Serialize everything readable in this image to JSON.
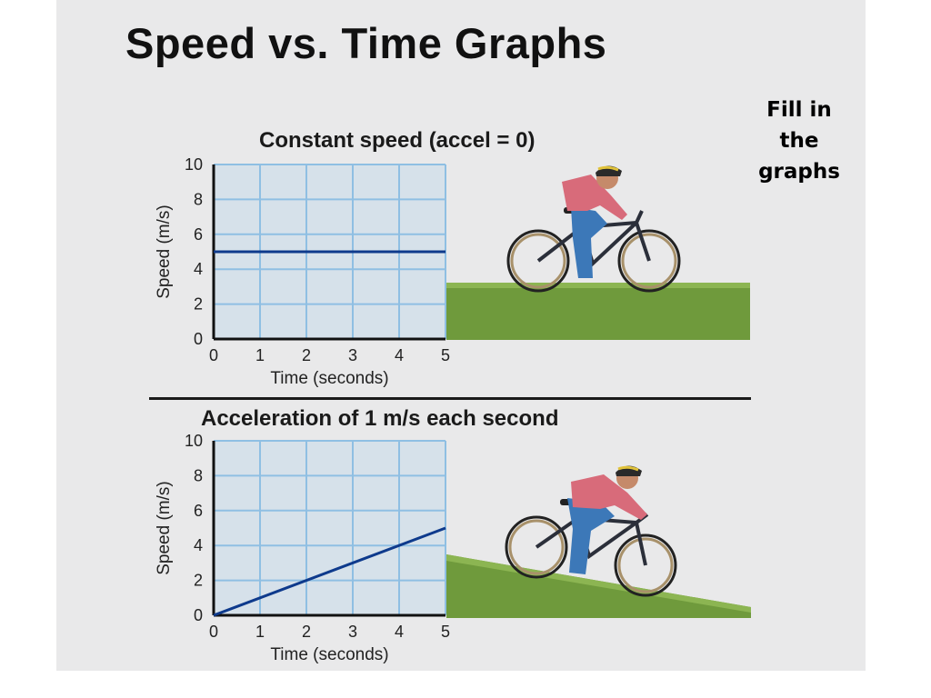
{
  "slide": {
    "title": "Speed vs. Time Graphs",
    "note_lines": [
      "Fill in",
      "the",
      "graphs"
    ]
  },
  "colors": {
    "plot_bg": "#d6e1ea",
    "grid": "#8fbfe3",
    "line": "#0e3a8c",
    "ground": "#6f9a3c",
    "ground_light": "#8cb552"
  },
  "chart_data": [
    {
      "type": "line",
      "title": "Constant speed (accel = 0)",
      "xlabel": "Time (seconds)",
      "ylabel": "Speed (m/s)",
      "xlim": [
        0,
        5
      ],
      "ylim": [
        0,
        10
      ],
      "xticks": [
        0,
        1,
        2,
        3,
        4,
        5
      ],
      "yticks": [
        0,
        2,
        4,
        6,
        8,
        10
      ],
      "grid": true,
      "x": [
        0,
        5
      ],
      "y": [
        5,
        5
      ]
    },
    {
      "type": "line",
      "title": "Acceleration of 1 m/s each second",
      "xlabel": "Time (seconds)",
      "ylabel": "Speed (m/s)",
      "xlim": [
        0,
        5
      ],
      "ylim": [
        0,
        10
      ],
      "xticks": [
        0,
        1,
        2,
        3,
        4,
        5
      ],
      "yticks": [
        0,
        2,
        4,
        6,
        8,
        10
      ],
      "grid": true,
      "x": [
        0,
        5
      ],
      "y": [
        0,
        5
      ]
    }
  ]
}
